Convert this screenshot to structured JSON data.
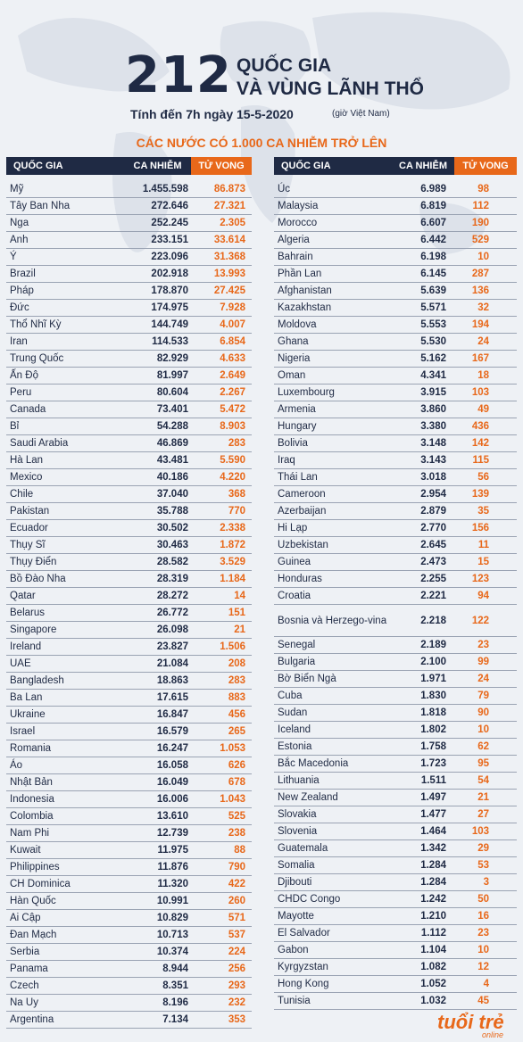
{
  "header": {
    "big_number": "212",
    "title_line1": "QUỐC GIA",
    "title_line2": "VÀ VÙNG LÃNH THỔ",
    "date_line": "Tính đến 7h ngày 15-5-2020",
    "date_note": "(giờ Việt Nam)",
    "section_title": "CÁC NƯỚC CÓ 1.000 CA NHIỄM TRỞ LÊN"
  },
  "columns": {
    "country": "QUỐC GIA",
    "cases": "CA NHIỄM",
    "deaths": "TỬ VONG"
  },
  "colors": {
    "navy": "#1f2a44",
    "orange": "#e8681a"
  },
  "left_rows": [
    {
      "country": "Mỹ",
      "cases": "1.455.598",
      "deaths": "86.873"
    },
    {
      "country": "Tây Ban Nha",
      "cases": "272.646",
      "deaths": "27.321"
    },
    {
      "country": "Nga",
      "cases": "252.245",
      "deaths": "2.305"
    },
    {
      "country": "Anh",
      "cases": "233.151",
      "deaths": "33.614"
    },
    {
      "country": "Ý",
      "cases": "223.096",
      "deaths": "31.368"
    },
    {
      "country": "Brazil",
      "cases": "202.918",
      "deaths": "13.993"
    },
    {
      "country": "Pháp",
      "cases": "178.870",
      "deaths": "27.425"
    },
    {
      "country": "Đức",
      "cases": "174.975",
      "deaths": "7.928"
    },
    {
      "country": "Thổ Nhĩ Kỳ",
      "cases": "144.749",
      "deaths": "4.007"
    },
    {
      "country": "Iran",
      "cases": "114.533",
      "deaths": "6.854"
    },
    {
      "country": "Trung Quốc",
      "cases": "82.929",
      "deaths": "4.633"
    },
    {
      "country": "Ấn Độ",
      "cases": "81.997",
      "deaths": "2.649"
    },
    {
      "country": "Peru",
      "cases": "80.604",
      "deaths": "2.267"
    },
    {
      "country": "Canada",
      "cases": "73.401",
      "deaths": "5.472"
    },
    {
      "country": "Bỉ",
      "cases": "54.288",
      "deaths": "8.903"
    },
    {
      "country": "Saudi Arabia",
      "cases": "46.869",
      "deaths": "283"
    },
    {
      "country": "Hà Lan",
      "cases": "43.481",
      "deaths": "5.590"
    },
    {
      "country": "Mexico",
      "cases": "40.186",
      "deaths": "4.220"
    },
    {
      "country": "Chile",
      "cases": "37.040",
      "deaths": "368"
    },
    {
      "country": "Pakistan",
      "cases": "35.788",
      "deaths": "770"
    },
    {
      "country": "Ecuador",
      "cases": "30.502",
      "deaths": "2.338"
    },
    {
      "country": "Thụy Sĩ",
      "cases": "30.463",
      "deaths": "1.872"
    },
    {
      "country": "Thụy Điển",
      "cases": "28.582",
      "deaths": "3.529"
    },
    {
      "country": "Bồ Đào Nha",
      "cases": "28.319",
      "deaths": "1.184"
    },
    {
      "country": "Qatar",
      "cases": "28.272",
      "deaths": "14"
    },
    {
      "country": "Belarus",
      "cases": "26.772",
      "deaths": "151"
    },
    {
      "country": "Singapore",
      "cases": "26.098",
      "deaths": "21"
    },
    {
      "country": "Ireland",
      "cases": "23.827",
      "deaths": "1.506"
    },
    {
      "country": "UAE",
      "cases": "21.084",
      "deaths": "208"
    },
    {
      "country": "Bangladesh",
      "cases": "18.863",
      "deaths": "283"
    },
    {
      "country": "Ba Lan",
      "cases": "17.615",
      "deaths": "883"
    },
    {
      "country": "Ukraine",
      "cases": "16.847",
      "deaths": "456"
    },
    {
      "country": "Israel",
      "cases": "16.579",
      "deaths": "265"
    },
    {
      "country": "Romania",
      "cases": "16.247",
      "deaths": "1.053"
    },
    {
      "country": "Áo",
      "cases": "16.058",
      "deaths": "626"
    },
    {
      "country": "Nhật Bản",
      "cases": "16.049",
      "deaths": "678"
    },
    {
      "country": "Indonesia",
      "cases": "16.006",
      "deaths": "1.043"
    },
    {
      "country": "Colombia",
      "cases": "13.610",
      "deaths": "525"
    },
    {
      "country": "Nam Phi",
      "cases": "12.739",
      "deaths": "238"
    },
    {
      "country": "Kuwait",
      "cases": "11.975",
      "deaths": "88"
    },
    {
      "country": "Philippines",
      "cases": "11.876",
      "deaths": "790"
    },
    {
      "country": "CH Dominica",
      "cases": "11.320",
      "deaths": "422"
    },
    {
      "country": "Hàn Quốc",
      "cases": "10.991",
      "deaths": "260"
    },
    {
      "country": "Ai Cập",
      "cases": "10.829",
      "deaths": "571"
    },
    {
      "country": "Đan Mạch",
      "cases": "10.713",
      "deaths": "537"
    },
    {
      "country": "Serbia",
      "cases": "10.374",
      "deaths": "224"
    },
    {
      "country": "Panama",
      "cases": "8.944",
      "deaths": "256"
    },
    {
      "country": "Czech",
      "cases": "8.351",
      "deaths": "293"
    },
    {
      "country": "Na Uy",
      "cases": "8.196",
      "deaths": "232"
    },
    {
      "country": "Argentina",
      "cases": "7.134",
      "deaths": "353"
    }
  ],
  "right_rows": [
    {
      "country": "Úc",
      "cases": "6.989",
      "deaths": "98"
    },
    {
      "country": "Malaysia",
      "cases": "6.819",
      "deaths": "112"
    },
    {
      "country": "Morocco",
      "cases": "6.607",
      "deaths": "190"
    },
    {
      "country": "Algeria",
      "cases": "6.442",
      "deaths": "529"
    },
    {
      "country": "Bahrain",
      "cases": "6.198",
      "deaths": "10"
    },
    {
      "country": "Phần Lan",
      "cases": "6.145",
      "deaths": "287"
    },
    {
      "country": "Afghanistan",
      "cases": "5.639",
      "deaths": "136"
    },
    {
      "country": "Kazakhstan",
      "cases": "5.571",
      "deaths": "32"
    },
    {
      "country": "Moldova",
      "cases": "5.553",
      "deaths": "194"
    },
    {
      "country": "Ghana",
      "cases": "5.530",
      "deaths": "24"
    },
    {
      "country": "Nigeria",
      "cases": "5.162",
      "deaths": "167"
    },
    {
      "country": "Oman",
      "cases": "4.341",
      "deaths": "18"
    },
    {
      "country": "Luxembourg",
      "cases": "3.915",
      "deaths": "103"
    },
    {
      "country": "Armenia",
      "cases": "3.860",
      "deaths": "49"
    },
    {
      "country": "Hungary",
      "cases": "3.380",
      "deaths": "436"
    },
    {
      "country": "Bolivia",
      "cases": "3.148",
      "deaths": "142"
    },
    {
      "country": "Iraq",
      "cases": "3.143",
      "deaths": "115"
    },
    {
      "country": "Thái Lan",
      "cases": "3.018",
      "deaths": "56"
    },
    {
      "country": "Cameroon",
      "cases": "2.954",
      "deaths": "139"
    },
    {
      "country": "Azerbaijan",
      "cases": "2.879",
      "deaths": "35"
    },
    {
      "country": "Hi Lạp",
      "cases": "2.770",
      "deaths": "156"
    },
    {
      "country": "Uzbekistan",
      "cases": "2.645",
      "deaths": "11"
    },
    {
      "country": "Guinea",
      "cases": "2.473",
      "deaths": "15"
    },
    {
      "country": "Honduras",
      "cases": "2.255",
      "deaths": "123"
    },
    {
      "country": "Croatia",
      "cases": "2.221",
      "deaths": "94"
    },
    {
      "country": "Bosnia và Herzego-vina",
      "cases": "2.218",
      "deaths": "122",
      "tall": true
    },
    {
      "country": "Senegal",
      "cases": "2.189",
      "deaths": "23"
    },
    {
      "country": "Bulgaria",
      "cases": "2.100",
      "deaths": "99"
    },
    {
      "country": "Bờ Biển Ngà",
      "cases": "1.971",
      "deaths": "24"
    },
    {
      "country": "Cuba",
      "cases": "1.830",
      "deaths": "79"
    },
    {
      "country": "Sudan",
      "cases": "1.818",
      "deaths": "90"
    },
    {
      "country": "Iceland",
      "cases": "1.802",
      "deaths": "10"
    },
    {
      "country": "Estonia",
      "cases": "1.758",
      "deaths": "62"
    },
    {
      "country": "Bắc Macedonia",
      "cases": "1.723",
      "deaths": "95"
    },
    {
      "country": "Lithuania",
      "cases": "1.511",
      "deaths": "54"
    },
    {
      "country": "New Zealand",
      "cases": "1.497",
      "deaths": "21"
    },
    {
      "country": "Slovakia",
      "cases": "1.477",
      "deaths": "27"
    },
    {
      "country": "Slovenia",
      "cases": "1.464",
      "deaths": "103"
    },
    {
      "country": "Guatemala",
      "cases": "1.342",
      "deaths": "29"
    },
    {
      "country": "Somalia",
      "cases": "1.284",
      "deaths": "53"
    },
    {
      "country": "Djibouti",
      "cases": "1.284",
      "deaths": "3"
    },
    {
      "country": "CHDC Congo",
      "cases": "1.242",
      "deaths": "50"
    },
    {
      "country": "Mayotte",
      "cases": "1.210",
      "deaths": "16"
    },
    {
      "country": "El Salvador",
      "cases": "1.112",
      "deaths": "23"
    },
    {
      "country": "Gabon",
      "cases": "1.104",
      "deaths": "10"
    },
    {
      "country": "Kyrgyzstan",
      "cases": "1.082",
      "deaths": "12"
    },
    {
      "country": "Hong Kong",
      "cases": "1.052",
      "deaths": "4"
    },
    {
      "country": "Tunisia",
      "cases": "1.032",
      "deaths": "45"
    }
  ],
  "logo": {
    "main": "tuổi trẻ",
    "sub": "online"
  }
}
